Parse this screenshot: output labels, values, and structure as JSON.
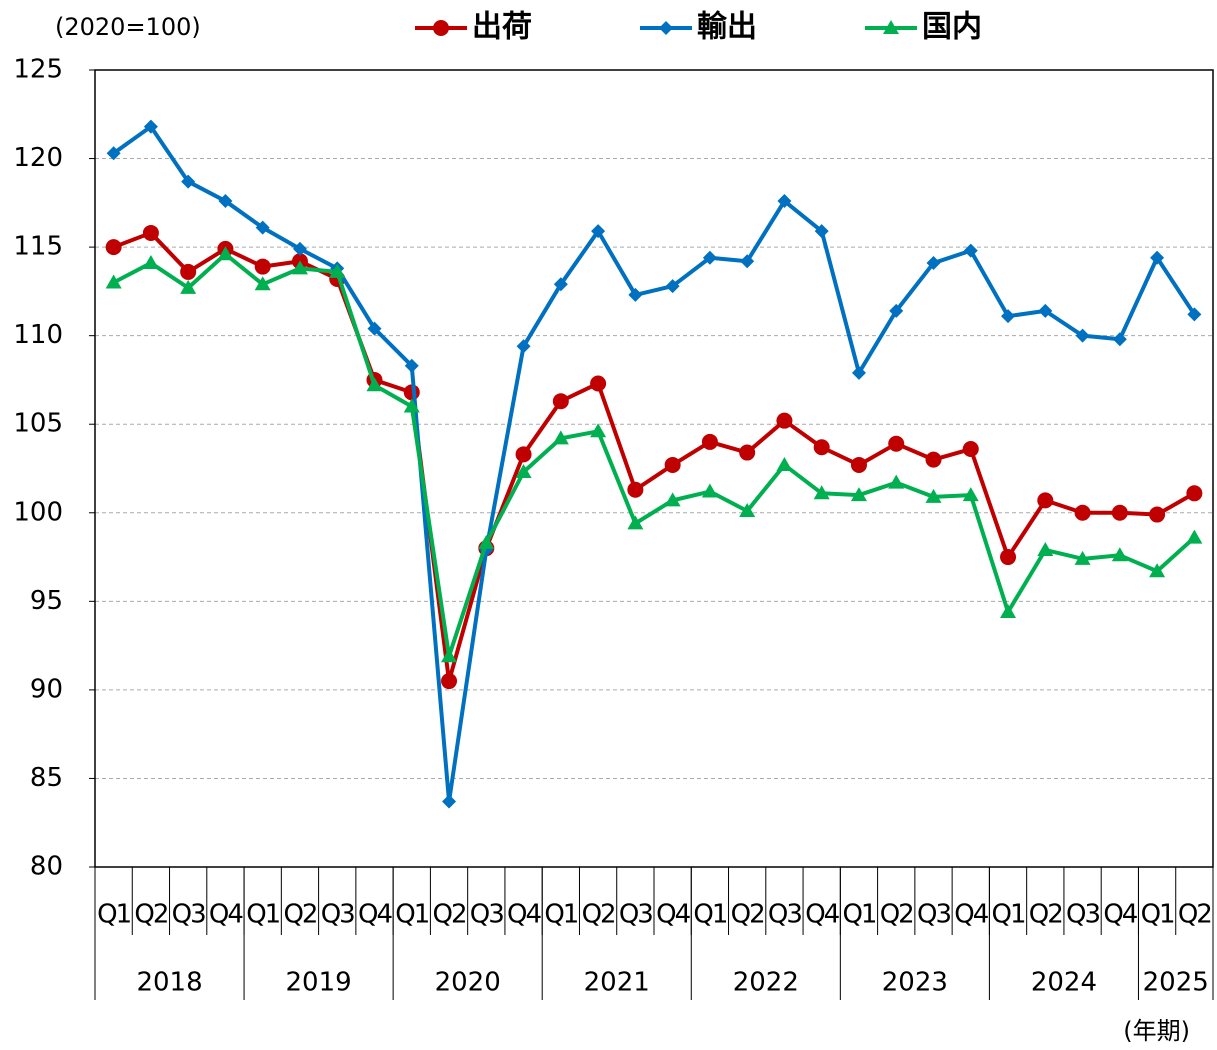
{
  "chart_data": {
    "type": "line",
    "y_unit_label": "(2020=100)",
    "x_unit_label": "(年期)",
    "categories": [
      "Q1",
      "Q2",
      "Q3",
      "Q4",
      "Q1",
      "Q2",
      "Q3",
      "Q4",
      "Q1",
      "Q2",
      "Q3",
      "Q4",
      "Q1",
      "Q2",
      "Q3",
      "Q4",
      "Q1",
      "Q2",
      "Q3",
      "Q4",
      "Q1",
      "Q2",
      "Q3",
      "Q4",
      "Q1",
      "Q2",
      "Q3",
      "Q4",
      "Q1",
      "Q2"
    ],
    "years": [
      "2018",
      "2019",
      "2020",
      "2021",
      "2022",
      "2023",
      "2024",
      "2025"
    ],
    "series": [
      {
        "name": "出荷",
        "color": "#c00000",
        "marker": "circle",
        "values": [
          115.0,
          115.8,
          113.6,
          114.9,
          113.9,
          114.2,
          113.2,
          107.5,
          106.8,
          90.5,
          98.0,
          103.3,
          106.3,
          107.3,
          101.3,
          102.7,
          104.0,
          103.4,
          105.2,
          103.7,
          102.7,
          103.9,
          103.0,
          103.6,
          97.5,
          100.7,
          100.0,
          100.0,
          99.9,
          101.1
        ]
      },
      {
        "name": "輸出",
        "color": "#0070c0",
        "marker": "diamond",
        "values": [
          120.3,
          121.8,
          118.7,
          117.6,
          116.1,
          114.9,
          113.8,
          110.4,
          108.3,
          83.7,
          97.9,
          109.4,
          112.9,
          115.9,
          112.3,
          112.8,
          114.4,
          114.2,
          117.6,
          115.9,
          107.9,
          111.4,
          114.1,
          114.8,
          111.1,
          111.4,
          110.0,
          109.8,
          114.4,
          111.2
        ]
      },
      {
        "name": "国内",
        "color": "#00b050",
        "marker": "triangle",
        "values": [
          113.0,
          114.1,
          112.7,
          114.6,
          112.9,
          113.8,
          113.6,
          107.2,
          106.0,
          91.9,
          98.3,
          102.3,
          104.2,
          104.6,
          99.4,
          100.7,
          101.2,
          100.1,
          102.7,
          101.1,
          101.0,
          101.7,
          100.9,
          101.0,
          94.4,
          97.9,
          97.4,
          97.6,
          96.7,
          98.6
        ]
      }
    ],
    "ylim": [
      80,
      125
    ],
    "yticks": [
      80,
      85,
      90,
      95,
      100,
      105,
      110,
      115,
      120,
      125
    ],
    "grid": true
  }
}
